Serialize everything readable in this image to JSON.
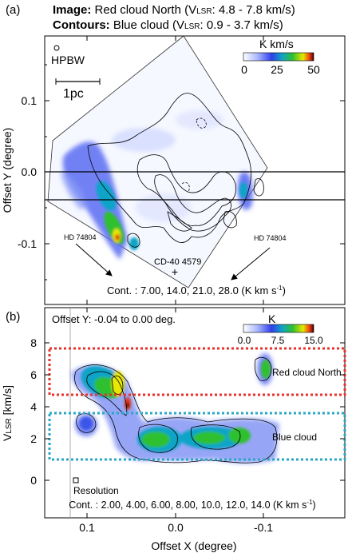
{
  "panel_a": {
    "tag": "(a)",
    "title_image_key": "Image:",
    "title_image_val": "Red cloud North (V",
    "title_image_sub": "LSR",
    "title_image_rest": ": 4.8 - 7.8 km/s)",
    "title_contour_key": "Contours:",
    "title_contour_val": "Blue cloud (V",
    "title_contour_sub": "LSR",
    "title_contour_rest": ": 0.9 - 3.7 km/s)",
    "beam_label": "HPBW",
    "scale_label": "1pc",
    "colorbar_unit": "K km/s",
    "colorbar_ticks": [
      "0",
      "25",
      "50"
    ],
    "ylabel": "Offset Y (degree)",
    "yticks": [
      "0.1",
      "0.0",
      "-0.1"
    ],
    "star_left": "HD 74804",
    "star_right": "HD 74804",
    "star_center": "CD-40 4579",
    "contour_note": "Cont. : 7.00, 14.0, 21.0, 28.0 (K km s",
    "contour_unit_sup": "-1",
    "contour_note_end": ")"
  },
  "panel_b": {
    "tag": "(b)",
    "offset_label": "Offset Y: -0.04 to 0.00 deg.",
    "colorbar_unit": "K",
    "colorbar_ticks": [
      "0.0",
      "7.5",
      "15.0"
    ],
    "ylabel_main": "V",
    "ylabel_sub": "LSR",
    "ylabel_rest": " [km/s]",
    "yticks": [
      "8",
      "6",
      "4",
      "2",
      "0"
    ],
    "xlabel": "Offset X (degree)",
    "xticks": [
      "0.1",
      "0.0",
      "-0.1"
    ],
    "red_box_label": "Red cloud North",
    "blue_box_label": "Blue cloud",
    "resolution_label": "Resolution",
    "contour_note": "Cont. : 2.00, 4.00, 6.00, 8.00, 10.0, 12.0, 14.0 (K km s",
    "contour_unit_sup": "-1",
    "contour_note_end": ")"
  },
  "colors": {
    "box_red": "#e8322c",
    "box_blue": "#2aa7c6",
    "cmap": [
      "#ffffff",
      "#a9b8ff",
      "#2f3fe8",
      "#10a4c8",
      "#2fc02f",
      "#e8e800",
      "#e83010",
      "#300000"
    ]
  }
}
